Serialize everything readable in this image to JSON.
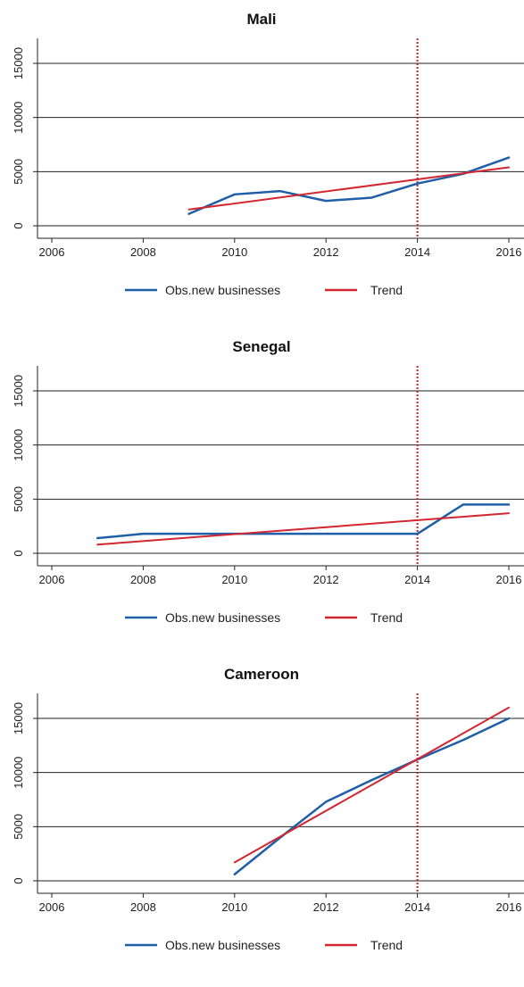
{
  "chart_data": [
    {
      "type": "line",
      "title": "Mali",
      "xlim": [
        2006,
        2016
      ],
      "ylim": [
        0,
        15000
      ],
      "x_ticks": [
        "2006",
        "2008",
        "2010",
        "2012",
        "2014",
        "2016"
      ],
      "y_ticks": [
        "0",
        "5000",
        "10000",
        "15000"
      ],
      "reference_line_x": 2014,
      "series": [
        {
          "name": "Obs.new businesses",
          "color": "#1f5fa8",
          "x": [
            2009,
            2010,
            2011,
            2012,
            2013,
            2014,
            2015,
            2016
          ],
          "y": [
            1100,
            2900,
            3200,
            2300,
            2600,
            3900,
            4800,
            6300
          ]
        },
        {
          "name": "Trend",
          "color": "#d22630",
          "x": [
            2009,
            2016
          ],
          "y": [
            1500,
            5400
          ]
        }
      ]
    },
    {
      "type": "line",
      "title": "Senegal",
      "xlim": [
        2006,
        2016
      ],
      "ylim": [
        0,
        15000
      ],
      "x_ticks": [
        "2006",
        "2008",
        "2010",
        "2012",
        "2014",
        "2016"
      ],
      "y_ticks": [
        "0",
        "5000",
        "10000",
        "15000"
      ],
      "reference_line_x": 2014,
      "series": [
        {
          "name": "Obs.new businesses",
          "color": "#1f5fa8",
          "x": [
            2007,
            2008,
            2009,
            2010,
            2011,
            2012,
            2013,
            2014,
            2015,
            2016
          ],
          "y": [
            1400,
            1800,
            1800,
            1800,
            1800,
            1800,
            1800,
            1800,
            4500,
            4500
          ]
        },
        {
          "name": "Trend",
          "color": "#d22630",
          "x": [
            2007,
            2016
          ],
          "y": [
            800,
            3700
          ]
        }
      ]
    },
    {
      "type": "line",
      "title": "Cameroon",
      "xlim": [
        2006,
        2016
      ],
      "ylim": [
        0,
        15000
      ],
      "x_ticks": [
        "2006",
        "2008",
        "2010",
        "2012",
        "2014",
        "2016"
      ],
      "y_ticks": [
        "0",
        "5000",
        "10000",
        "15000"
      ],
      "reference_line_x": 2014,
      "series": [
        {
          "name": "Obs.new businesses",
          "color": "#1f5fa8",
          "x": [
            2010,
            2011,
            2012,
            2013,
            2014,
            2015,
            2016
          ],
          "y": [
            600,
            4000,
            7300,
            9300,
            11200,
            13000,
            15000
          ]
        },
        {
          "name": "Trend",
          "color": "#d22630",
          "x": [
            2010,
            2016
          ],
          "y": [
            1700,
            16000
          ]
        }
      ]
    }
  ]
}
